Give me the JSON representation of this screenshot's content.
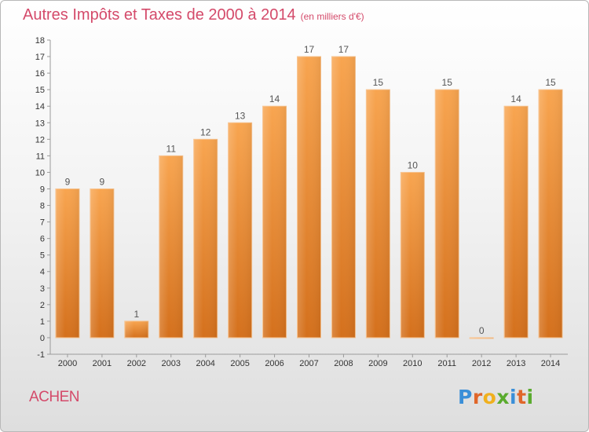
{
  "header": {
    "title": "Autres Impôts et Taxes de 2000 à 2014",
    "subtitle": "(en milliers d'€)"
  },
  "footer": {
    "commune": "ACHEN",
    "logo_letters": [
      "P",
      "r",
      "o",
      "x",
      "i",
      "t",
      "i"
    ],
    "logo_colors": [
      "#3a8fd8",
      "#e0662a",
      "#f0b01e",
      "#5aab2e",
      "#3a8fd8",
      "#e0662a",
      "#5aab2e"
    ]
  },
  "chart_data": {
    "type": "bar",
    "categories": [
      "2000",
      "2001",
      "2002",
      "2003",
      "2004",
      "2005",
      "2006",
      "2007",
      "2008",
      "2009",
      "2010",
      "2011",
      "2012",
      "2013",
      "2014"
    ],
    "values": [
      9,
      9,
      1,
      11,
      12,
      13,
      14,
      17,
      17,
      15,
      10,
      15,
      0,
      14,
      15
    ],
    "title": "Autres Impôts et Taxes de 2000 à 2014",
    "xlabel": "",
    "ylabel": "",
    "ylim": [
      -1,
      18
    ],
    "yticks": [
      -1,
      0,
      1,
      2,
      3,
      4,
      5,
      6,
      7,
      8,
      9,
      10,
      11,
      12,
      13,
      14,
      15,
      16,
      17,
      18
    ],
    "grid": false,
    "bar_color": "#f0923a",
    "bar_color_light": "#f8b064",
    "bar_color_dark": "#d9731c"
  }
}
